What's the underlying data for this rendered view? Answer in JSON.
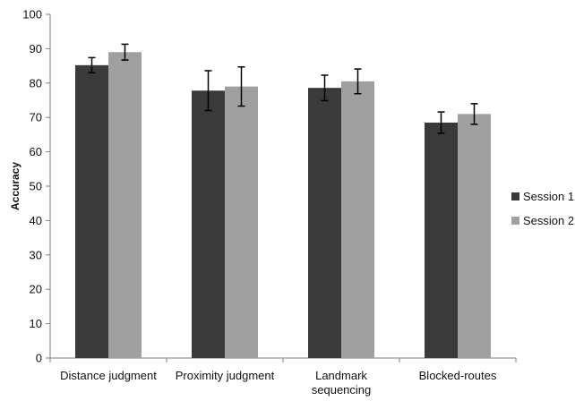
{
  "chart_data": {
    "type": "bar",
    "title": "",
    "xlabel": "",
    "ylabel": "Accuracy",
    "ylim": [
      0,
      100
    ],
    "yticks": [
      0,
      10,
      20,
      30,
      40,
      50,
      60,
      70,
      80,
      90,
      100
    ],
    "grid": false,
    "legend_position": "right",
    "categories": [
      [
        "Distance judgment"
      ],
      [
        "Proximity judgment"
      ],
      [
        "Landmark",
        "sequencing"
      ],
      [
        "Blocked-routes"
      ]
    ],
    "series": [
      {
        "name": "Session 1",
        "color": "#3a3a3a",
        "values": [
          85.2,
          77.8,
          78.6,
          68.5
        ],
        "errors": [
          2.2,
          5.8,
          3.7,
          3.1
        ]
      },
      {
        "name": "Session 2",
        "color": "#a0a0a0",
        "values": [
          89.0,
          79.0,
          80.5,
          71.0
        ],
        "errors": [
          2.3,
          5.7,
          3.6,
          3.0
        ]
      }
    ]
  }
}
